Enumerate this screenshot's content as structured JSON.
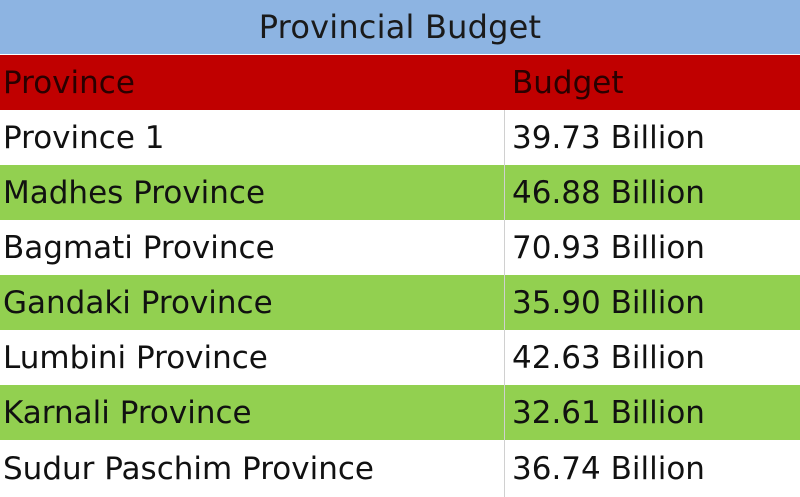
{
  "title": "Provincial Budget",
  "columns": {
    "province": "Province",
    "budget": "Budget"
  },
  "rows": [
    {
      "province": "Province 1",
      "budget": "39.73 Billion"
    },
    {
      "province": "Madhes Province",
      "budget": "46.88 Billion"
    },
    {
      "province": "Bagmati Province",
      "budget": "70.93 Billion"
    },
    {
      "province": "Gandaki Province",
      "budget": "35.90 Billion"
    },
    {
      "province": "Lumbini Province",
      "budget": "42.63 Billion"
    },
    {
      "province": "Karnali Province",
      "budget": "32.61 Billion"
    },
    {
      "province": "Sudur Paschim Province",
      "budget": "36.74 Billion"
    }
  ],
  "colors": {
    "title_background": "#8db4e2",
    "header_background": "#c00000",
    "alternate_row_background": "#92d050",
    "row_background": "#ffffff"
  }
}
